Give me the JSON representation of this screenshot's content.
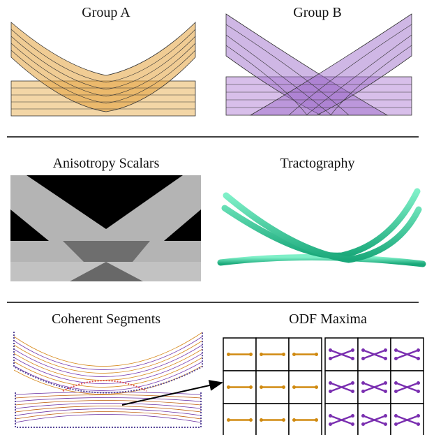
{
  "panels": {
    "group_a": {
      "title": "Group A"
    },
    "group_b": {
      "title": "Group B"
    },
    "anisotropy": {
      "title": "Anisotropy Scalars"
    },
    "tractography": {
      "title": "Tractography"
    },
    "coherent": {
      "title": "Coherent Segments"
    },
    "odf": {
      "title": "ODF Maxima"
    }
  }
}
